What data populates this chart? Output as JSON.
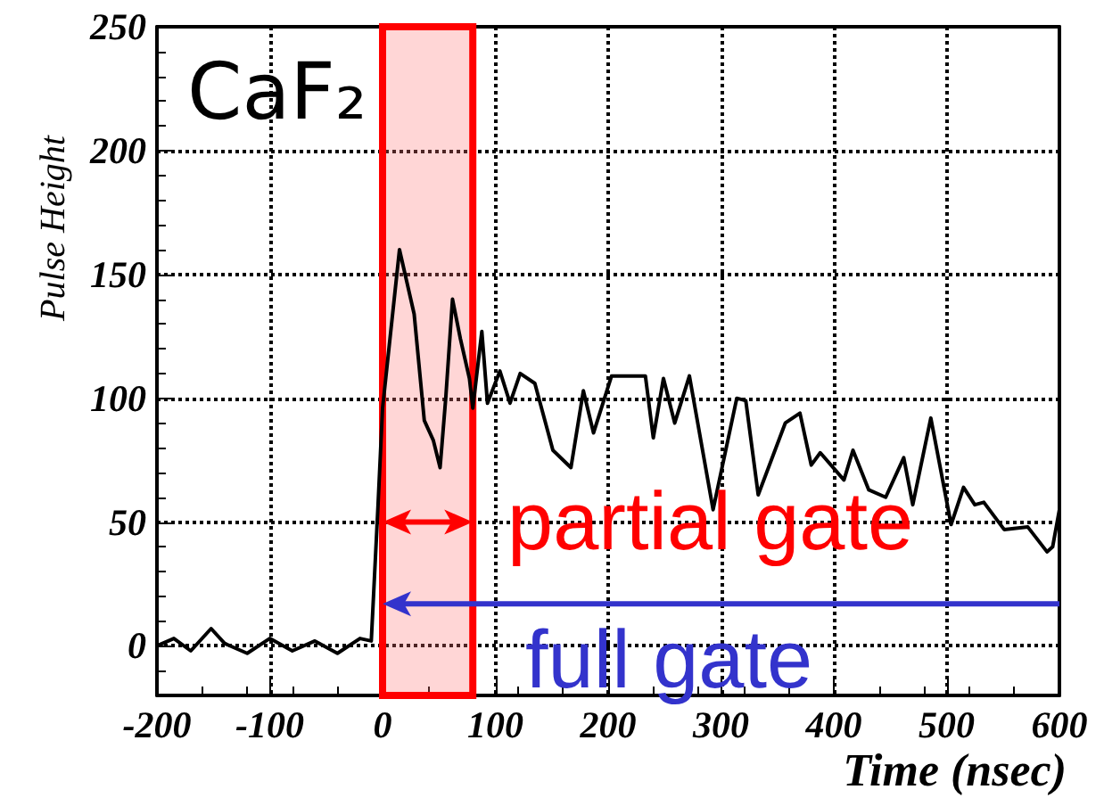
{
  "chart_data": {
    "type": "line",
    "xlabel": "Time (nsec)",
    "ylabel": "Pulse Height",
    "x": [
      -200,
      -185,
      -170,
      -152,
      -140,
      -120,
      -100,
      -80,
      -60,
      -40,
      -20,
      -10,
      -4,
      0,
      15,
      28,
      37,
      45,
      51,
      56,
      62,
      69,
      77,
      80,
      88,
      93,
      104,
      113,
      122,
      135,
      151,
      167,
      178,
      187,
      203,
      233,
      240,
      249,
      259,
      272,
      293,
      314,
      322,
      333,
      357,
      370,
      380,
      388,
      409,
      417,
      431,
      446,
      462,
      470,
      486,
      504,
      515,
      525,
      533,
      551,
      572,
      589,
      594,
      600
    ],
    "series": [
      {
        "color": "#000000",
        "values": [
          0,
          3,
          -2,
          7,
          1,
          -3,
          3,
          -2,
          2,
          -3,
          3,
          2,
          57,
          96,
          160,
          134,
          91,
          83,
          72,
          100,
          140,
          124,
          108,
          96,
          127,
          98,
          111,
          98,
          110,
          106,
          79,
          72,
          103,
          86,
          109,
          109,
          84,
          108,
          90,
          109,
          55,
          100,
          99,
          61,
          90,
          94,
          73,
          78,
          67,
          79,
          63,
          60,
          76,
          57,
          92,
          49,
          64,
          57,
          58,
          47,
          48,
          38,
          40,
          55
        ]
      }
    ],
    "xlim": [
      -200,
      600
    ],
    "xticks": [
      -200,
      -100,
      0,
      100,
      200,
      300,
      400,
      500,
      600
    ],
    "ylim": [
      -20,
      250
    ],
    "yticks": [
      0,
      50,
      100,
      150,
      200,
      250
    ],
    "grid": true,
    "marker": "none",
    "line_style": "solid",
    "bands": [
      {
        "axis": "x",
        "from": 0,
        "to": 80,
        "color": "#ff0000"
      }
    ],
    "annotations": [
      "CaF₂",
      {
        "text": "partial gate",
        "x": 0,
        "y": 50
      },
      {
        "text": "full gate",
        "x": 0,
        "y": 17
      }
    ]
  }
}
